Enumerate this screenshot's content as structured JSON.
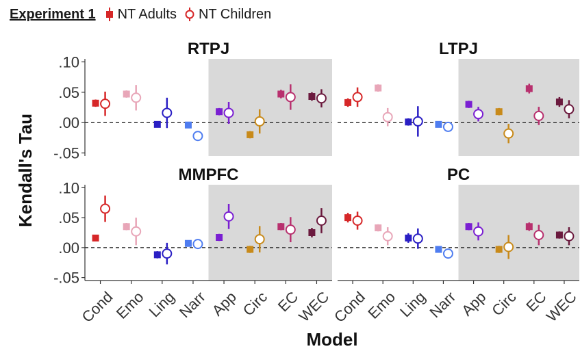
{
  "legend": {
    "experiment": "Experiment 1",
    "adults_label": "NT Adults",
    "children_label": "NT Children",
    "color": "#d62728"
  },
  "chart_data": {
    "type": "scatter",
    "xlabel": "Model",
    "ylabel": "Kendall's Tau",
    "ylim": [
      -0.055,
      0.105
    ],
    "yticks": [
      ".10",
      ".05",
      ".00",
      "-.05"
    ],
    "ytick_values": [
      0.1,
      0.05,
      0.0,
      -0.05
    ],
    "categories": [
      "Cond",
      "Emo",
      "Ling",
      "Narr",
      "App",
      "Circ",
      "EC",
      "WEC"
    ],
    "category_colors": [
      "#d62728",
      "#e8a6b8",
      "#2a1fc4",
      "#4f7df0",
      "#7a1fd2",
      "#c88a1a",
      "#b8306e",
      "#6b1a3e"
    ],
    "shaded_categories": [
      "App",
      "Circ",
      "EC",
      "WEC"
    ],
    "shade_color": "#d9d9d9",
    "reference_line": 0,
    "panels": [
      {
        "title": "RTPJ",
        "adults": [
          0.032,
          0.047,
          -0.003,
          -0.004,
          0.018,
          -0.02,
          0.047,
          0.043
        ],
        "adults_err": [
          0.006,
          0.006,
          0.004,
          0.003,
          0.006,
          0.006,
          0.007,
          0.007
        ],
        "children": [
          0.031,
          0.041,
          0.016,
          -0.022,
          0.016,
          0.002,
          0.042,
          0.04
        ],
        "children_err": [
          0.02,
          0.021,
          0.025,
          0.008,
          0.018,
          0.02,
          0.021,
          0.015
        ]
      },
      {
        "title": "LTPJ",
        "adults": [
          0.033,
          0.057,
          0.001,
          -0.003,
          0.03,
          0.018,
          0.056,
          0.034
        ],
        "adults_err": [
          0.007,
          0.006,
          0.006,
          0.004,
          0.006,
          0.006,
          0.008,
          0.008
        ],
        "children": [
          0.042,
          0.009,
          0.002,
          -0.007,
          0.014,
          -0.018,
          0.011,
          0.022
        ],
        "children_err": [
          0.016,
          0.015,
          0.025,
          0.008,
          0.012,
          0.016,
          0.015,
          0.015
        ]
      },
      {
        "title": "MMPFC",
        "adults": [
          0.016,
          0.035,
          -0.012,
          0.007,
          0.017,
          -0.003,
          0.035,
          0.025
        ],
        "adults_err": [
          0.004,
          0.006,
          0.006,
          0.003,
          0.006,
          0.006,
          0.006,
          0.008
        ],
        "children": [
          0.065,
          0.027,
          -0.01,
          0.006,
          0.052,
          0.014,
          0.03,
          0.045
        ],
        "children_err": [
          0.022,
          0.023,
          0.018,
          0.008,
          0.021,
          0.022,
          0.021,
          0.021
        ]
      },
      {
        "title": "PC",
        "adults": [
          0.05,
          0.033,
          0.016,
          -0.003,
          0.035,
          -0.003,
          0.035,
          0.021
        ],
        "adults_err": [
          0.008,
          0.006,
          0.008,
          0.003,
          0.006,
          0.006,
          0.007,
          0.006
        ],
        "children": [
          0.045,
          0.019,
          0.015,
          -0.01,
          0.027,
          0.001,
          0.021,
          0.019
        ],
        "children_err": [
          0.015,
          0.015,
          0.017,
          0.008,
          0.015,
          0.02,
          0.017,
          0.015
        ]
      }
    ]
  }
}
